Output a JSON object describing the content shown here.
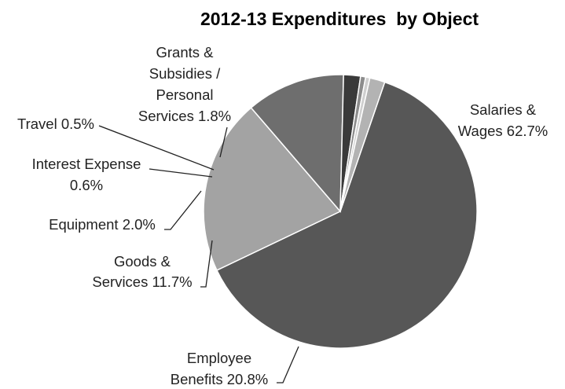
{
  "chart_data": {
    "type": "pie",
    "title": "2012-13 Expenditures  by Object",
    "legend": "none (labels beside slices)",
    "start_angle_deg": -71,
    "direction": "clockwise",
    "slices": [
      {
        "key": "salaries",
        "label_lines": [
          "Salaries &",
          "Wages 62.7%"
        ],
        "name": "Salaries & Wages",
        "value": 62.7,
        "color": "#575757"
      },
      {
        "key": "benefits",
        "label_lines": [
          "Employee",
          "Benefits 20.8%"
        ],
        "name": "Employee Benefits",
        "value": 20.8,
        "color": "#a3a3a3"
      },
      {
        "key": "goods",
        "label_lines": [
          "Goods &",
          "Services 11.7%"
        ],
        "name": "Goods & Services",
        "value": 11.7,
        "color": "#6e6e6e"
      },
      {
        "key": "equipment",
        "label_lines": [
          "Equipment 2.0%"
        ],
        "name": "Equipment",
        "value": 2.0,
        "color": "#3a3a3a"
      },
      {
        "key": "interest",
        "label_lines": [
          "Interest Expense",
          "0.6%"
        ],
        "name": "Interest Expense",
        "value": 0.6,
        "color": "#8c8c8c"
      },
      {
        "key": "travel",
        "label_lines": [
          "Travel 0.5%"
        ],
        "name": "Travel",
        "value": 0.5,
        "color": "#cfcfcf"
      },
      {
        "key": "grants",
        "label_lines": [
          "Grants &",
          "Subsidies /",
          "Personal",
          "Services 1.8%"
        ],
        "name": "Grants & Subsidies / Personal Services",
        "value": 1.8,
        "color": "#b3b3b3"
      }
    ]
  }
}
